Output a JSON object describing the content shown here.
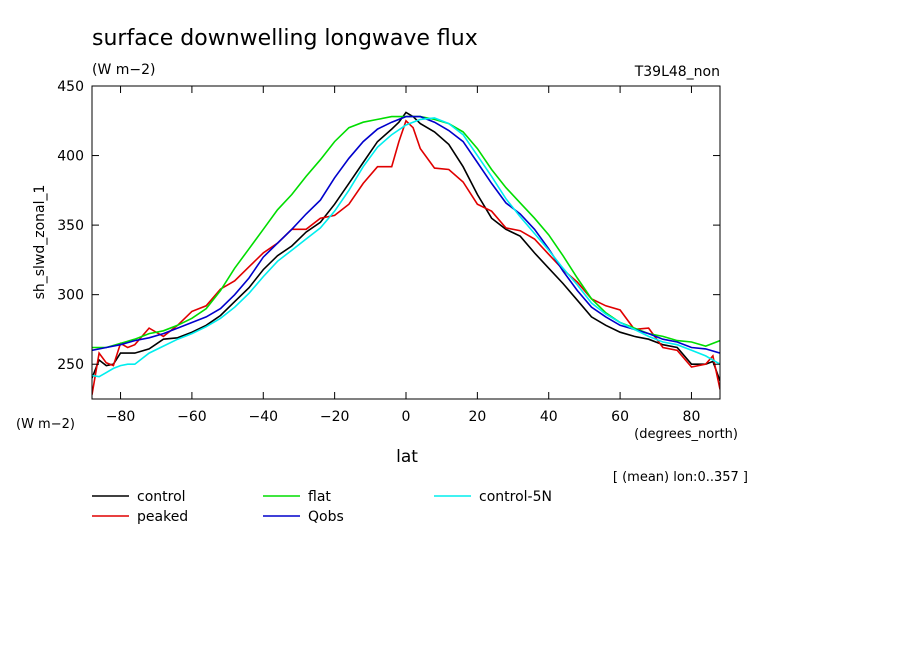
{
  "chart_data": {
    "type": "line",
    "title": "surface downwelling longwave flux",
    "subtitle": "(W m−2)",
    "run_label": "T39L48_non",
    "ylabel": "sh_slwd_zonal_1",
    "yunits": "(W m−2)",
    "xlabel": "lat",
    "xunits": "(degrees_north)",
    "note": "[ (mean) lon:0..357 ]",
    "xlim": [
      -88,
      88
    ],
    "ylim": [
      225,
      450
    ],
    "xticks": [
      -80,
      -60,
      -40,
      -20,
      0,
      20,
      40,
      60,
      80
    ],
    "xtick_labels": [
      "−80",
      "−60",
      "−40",
      "−20",
      "0",
      "20",
      "40",
      "60",
      "80"
    ],
    "yticks": [
      250,
      300,
      350,
      400,
      450
    ],
    "ytick_labels": [
      "250",
      "300",
      "350",
      "400",
      "450"
    ],
    "series": [
      {
        "name": "control",
        "color": "#000000",
        "x": [
          -88,
          -86,
          -84,
          -82,
          -80,
          -78,
          -76,
          -72,
          -68,
          -64,
          -60,
          -56,
          -52,
          -48,
          -44,
          -40,
          -36,
          -32,
          -28,
          -24,
          -20,
          -16,
          -12,
          -8,
          -4,
          -2,
          0,
          2,
          4,
          8,
          12,
          16,
          20,
          24,
          28,
          32,
          36,
          40,
          44,
          48,
          52,
          56,
          60,
          64,
          68,
          72,
          76,
          80,
          84,
          86,
          88
        ],
        "y": [
          240,
          253,
          249,
          250,
          258,
          258,
          258,
          261,
          268,
          269,
          273,
          278,
          285,
          295,
          305,
          318,
          328,
          335,
          345,
          352,
          365,
          380,
          395,
          410,
          419,
          424,
          431,
          428,
          423,
          417,
          408,
          392,
          372,
          355,
          347,
          342,
          330,
          319,
          308,
          296,
          284,
          278,
          273,
          270,
          268,
          264,
          262,
          250,
          250,
          252,
          238
        ]
      },
      {
        "name": "peaked",
        "color": "#e00000",
        "x": [
          -88,
          -86,
          -84,
          -82,
          -80,
          -78,
          -76,
          -72,
          -68,
          -64,
          -60,
          -56,
          -52,
          -48,
          -44,
          -40,
          -36,
          -32,
          -28,
          -24,
          -20,
          -16,
          -12,
          -8,
          -4,
          -2,
          0,
          2,
          4,
          8,
          12,
          16,
          20,
          24,
          28,
          32,
          36,
          40,
          44,
          48,
          52,
          56,
          60,
          64,
          68,
          72,
          76,
          80,
          84,
          86,
          88
        ],
        "y": [
          228,
          258,
          251,
          249,
          265,
          262,
          264,
          276,
          270,
          278,
          288,
          292,
          304,
          310,
          320,
          330,
          337,
          347,
          347,
          355,
          357,
          365,
          380,
          392,
          392,
          410,
          425,
          420,
          405,
          391,
          390,
          381,
          365,
          360,
          348,
          346,
          340,
          329,
          318,
          309,
          297,
          292,
          289,
          275,
          276,
          262,
          260,
          248,
          250,
          256,
          232
        ]
      },
      {
        "name": "flat",
        "color": "#00dd00",
        "x": [
          -88,
          -84,
          -80,
          -76,
          -72,
          -68,
          -64,
          -60,
          -56,
          -52,
          -48,
          -44,
          -40,
          -36,
          -32,
          -28,
          -24,
          -20,
          -16,
          -12,
          -8,
          -4,
          0,
          4,
          8,
          12,
          16,
          20,
          24,
          28,
          32,
          36,
          40,
          44,
          48,
          52,
          56,
          60,
          64,
          68,
          72,
          76,
          80,
          84,
          88
        ],
        "y": [
          262,
          262,
          265,
          268,
          272,
          274,
          278,
          283,
          290,
          303,
          319,
          333,
          347,
          361,
          372,
          385,
          397,
          410,
          420,
          424,
          426,
          428,
          428,
          428,
          426,
          423,
          417,
          405,
          390,
          377,
          366,
          355,
          343,
          328,
          312,
          297,
          287,
          280,
          276,
          272,
          270,
          267,
          266,
          263,
          267
        ]
      },
      {
        "name": "Qobs",
        "color": "#0000cc",
        "x": [
          -88,
          -84,
          -80,
          -76,
          -72,
          -68,
          -64,
          -60,
          -56,
          -52,
          -48,
          -44,
          -40,
          -36,
          -32,
          -28,
          -24,
          -20,
          -16,
          -12,
          -8,
          -4,
          0,
          4,
          8,
          12,
          16,
          20,
          24,
          28,
          32,
          36,
          40,
          44,
          48,
          52,
          56,
          60,
          64,
          68,
          72,
          76,
          80,
          84,
          88
        ],
        "y": [
          260,
          262,
          264,
          267,
          269,
          272,
          276,
          280,
          284,
          290,
          300,
          312,
          327,
          337,
          347,
          358,
          368,
          384,
          398,
          410,
          419,
          424,
          428,
          428,
          424,
          418,
          410,
          395,
          380,
          366,
          358,
          347,
          333,
          317,
          303,
          291,
          284,
          278,
          275,
          272,
          268,
          266,
          262,
          261,
          258
        ]
      },
      {
        "name": "control-5N",
        "color": "#00eeee",
        "x": [
          -88,
          -86,
          -84,
          -82,
          -80,
          -78,
          -76,
          -72,
          -68,
          -64,
          -60,
          -56,
          -52,
          -48,
          -44,
          -40,
          -36,
          -32,
          -28,
          -24,
          -20,
          -16,
          -12,
          -8,
          -4,
          0,
          4,
          8,
          12,
          16,
          20,
          24,
          28,
          32,
          36,
          40,
          44,
          48,
          52,
          56,
          60,
          64,
          68,
          72,
          76,
          80,
          84,
          88
        ],
        "y": [
          242,
          241,
          244,
          247,
          249,
          250,
          250,
          258,
          263,
          268,
          272,
          277,
          283,
          291,
          301,
          313,
          324,
          332,
          340,
          348,
          360,
          375,
          392,
          406,
          415,
          422,
          426,
          427,
          423,
          415,
          400,
          385,
          369,
          356,
          344,
          332,
          319,
          307,
          294,
          286,
          280,
          275,
          270,
          266,
          264,
          260,
          256,
          250
        ]
      }
    ]
  }
}
